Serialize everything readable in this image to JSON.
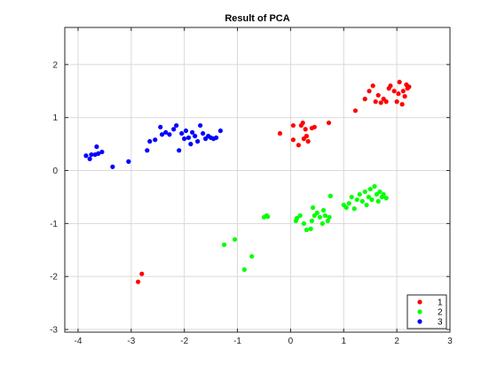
{
  "chart_data": {
    "type": "scatter",
    "title": "Result of PCA",
    "xlabel": "",
    "ylabel": "",
    "xlim": [
      -4.25,
      3
    ],
    "ylim": [
      -3.05,
      2.7
    ],
    "xticks": [
      -4,
      -3,
      -2,
      -1,
      0,
      1,
      2,
      3
    ],
    "yticks": [
      -3,
      -2,
      -1,
      0,
      1,
      2
    ],
    "grid": true,
    "legend_position": "bottom-right",
    "series": [
      {
        "name": "1",
        "color": "#ff0000",
        "points": [
          [
            -2.8,
            -1.95
          ],
          [
            -2.87,
            -2.1
          ],
          [
            -0.2,
            0.7
          ],
          [
            0.05,
            0.58
          ],
          [
            0.05,
            0.85
          ],
          [
            0.15,
            0.48
          ],
          [
            0.2,
            0.85
          ],
          [
            0.23,
            0.9
          ],
          [
            0.25,
            0.6
          ],
          [
            0.28,
            0.78
          ],
          [
            0.3,
            0.65
          ],
          [
            0.33,
            0.55
          ],
          [
            0.4,
            0.8
          ],
          [
            0.45,
            0.82
          ],
          [
            0.72,
            0.9
          ],
          [
            1.22,
            1.13
          ],
          [
            1.4,
            1.35
          ],
          [
            1.48,
            1.5
          ],
          [
            1.55,
            1.6
          ],
          [
            1.6,
            1.3
          ],
          [
            1.65,
            1.42
          ],
          [
            1.7,
            1.28
          ],
          [
            1.75,
            1.35
          ],
          [
            1.8,
            1.3
          ],
          [
            1.85,
            1.55
          ],
          [
            1.88,
            1.6
          ],
          [
            1.95,
            1.5
          ],
          [
            2.0,
            1.3
          ],
          [
            2.03,
            1.45
          ],
          [
            2.05,
            1.67
          ],
          [
            2.1,
            1.25
          ],
          [
            2.12,
            1.5
          ],
          [
            2.15,
            1.4
          ],
          [
            2.18,
            1.62
          ],
          [
            2.2,
            1.55
          ],
          [
            2.23,
            1.58
          ]
        ]
      },
      {
        "name": "2",
        "color": "#00ff00",
        "points": [
          [
            -1.25,
            -1.4
          ],
          [
            -1.05,
            -1.3
          ],
          [
            -0.87,
            -1.87
          ],
          [
            -0.73,
            -1.62
          ],
          [
            -0.5,
            -0.88
          ],
          [
            -0.45,
            -0.85
          ],
          [
            -0.43,
            -0.87
          ],
          [
            0.1,
            -0.95
          ],
          [
            0.12,
            -0.9
          ],
          [
            0.18,
            -0.85
          ],
          [
            0.25,
            -1.0
          ],
          [
            0.3,
            -1.12
          ],
          [
            0.38,
            -1.1
          ],
          [
            0.4,
            -0.95
          ],
          [
            0.42,
            -0.7
          ],
          [
            0.45,
            -0.85
          ],
          [
            0.5,
            -0.8
          ],
          [
            0.55,
            -0.88
          ],
          [
            0.6,
            -1.0
          ],
          [
            0.62,
            -0.75
          ],
          [
            0.65,
            -0.85
          ],
          [
            0.7,
            -0.95
          ],
          [
            0.73,
            -0.88
          ],
          [
            0.75,
            -0.48
          ],
          [
            1.0,
            -0.65
          ],
          [
            1.05,
            -0.7
          ],
          [
            1.1,
            -0.62
          ],
          [
            1.15,
            -0.5
          ],
          [
            1.2,
            -0.72
          ],
          [
            1.25,
            -0.55
          ],
          [
            1.3,
            -0.45
          ],
          [
            1.35,
            -0.58
          ],
          [
            1.4,
            -0.4
          ],
          [
            1.43,
            -0.65
          ],
          [
            1.47,
            -0.5
          ],
          [
            1.5,
            -0.35
          ],
          [
            1.53,
            -0.55
          ],
          [
            1.58,
            -0.3
          ],
          [
            1.62,
            -0.45
          ],
          [
            1.65,
            -0.58
          ],
          [
            1.68,
            -0.4
          ],
          [
            1.72,
            -0.5
          ],
          [
            1.75,
            -0.45
          ],
          [
            1.8,
            -0.52
          ]
        ]
      },
      {
        "name": "3",
        "color": "#0000ff",
        "points": [
          [
            -3.85,
            0.28
          ],
          [
            -3.78,
            0.22
          ],
          [
            -3.75,
            0.3
          ],
          [
            -3.68,
            0.3
          ],
          [
            -3.65,
            0.45
          ],
          [
            -3.62,
            0.32
          ],
          [
            -3.55,
            0.35
          ],
          [
            -3.35,
            0.07
          ],
          [
            -3.05,
            0.17
          ],
          [
            -2.7,
            0.38
          ],
          [
            -2.65,
            0.55
          ],
          [
            -2.55,
            0.58
          ],
          [
            -2.45,
            0.82
          ],
          [
            -2.42,
            0.68
          ],
          [
            -2.35,
            0.72
          ],
          [
            -2.28,
            0.68
          ],
          [
            -2.2,
            0.78
          ],
          [
            -2.15,
            0.85
          ],
          [
            -2.1,
            0.38
          ],
          [
            -2.05,
            0.7
          ],
          [
            -2.0,
            0.6
          ],
          [
            -1.97,
            0.75
          ],
          [
            -1.92,
            0.62
          ],
          [
            -1.88,
            0.5
          ],
          [
            -1.85,
            0.72
          ],
          [
            -1.8,
            0.65
          ],
          [
            -1.75,
            0.55
          ],
          [
            -1.7,
            0.85
          ],
          [
            -1.65,
            0.7
          ],
          [
            -1.6,
            0.6
          ],
          [
            -1.55,
            0.65
          ],
          [
            -1.5,
            0.62
          ],
          [
            -1.45,
            0.6
          ],
          [
            -1.4,
            0.62
          ],
          [
            -1.32,
            0.75
          ]
        ]
      }
    ]
  }
}
